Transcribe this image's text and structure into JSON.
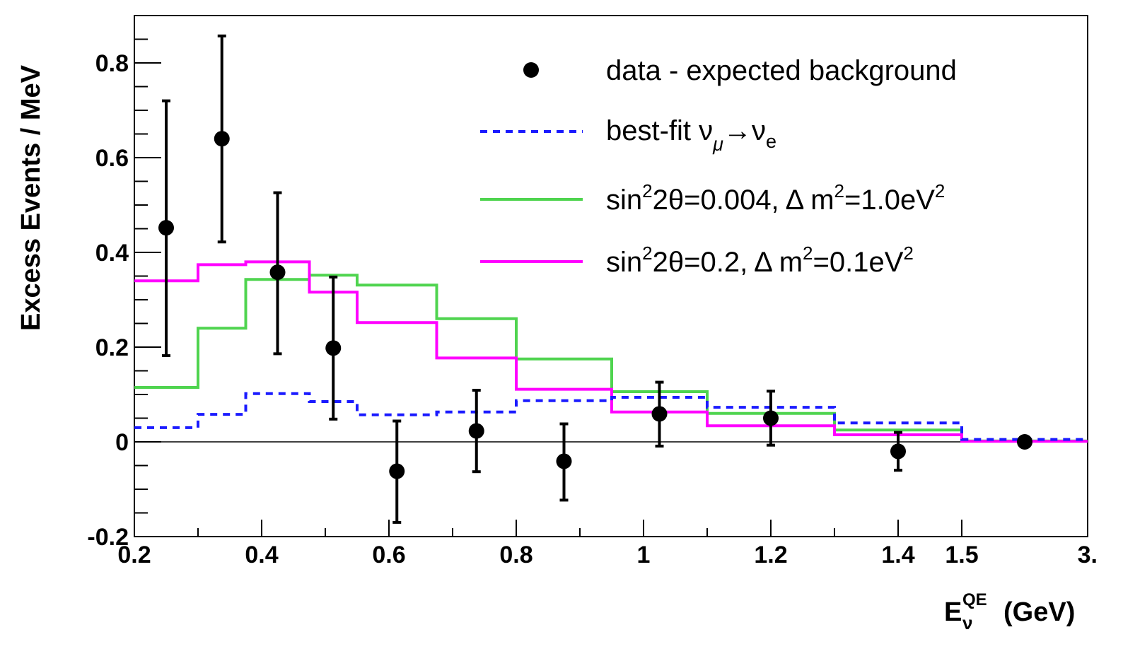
{
  "chart_data": {
    "type": "line",
    "xlabel": {
      "main": "E",
      "sup": "QE",
      "sub": "ν",
      "unit": "(GeV)"
    },
    "ylabel": "Excess Events / MeV",
    "xlim": [
      0.2,
      3.0
    ],
    "ylim": [
      -0.2,
      0.9
    ],
    "x_scale": "piecewise: linear 0.2–1.5 GeV, last bin 1.5–3.0 GeV compressed",
    "x_tick_values": [
      0.2,
      0.4,
      0.6,
      0.8,
      1.0,
      1.2,
      1.4,
      1.5,
      3.0
    ],
    "x_tick_labels": [
      "0.2",
      "0.4",
      "0.6",
      "0.8",
      "1",
      "1.2",
      "1.4",
      "1.5",
      "3."
    ],
    "y_tick_values": [
      -0.2,
      0,
      0.2,
      0.4,
      0.6,
      0.8
    ],
    "y_tick_labels": [
      "-0.2",
      "0",
      "0.2",
      "0.4",
      "0.6",
      "0.8"
    ],
    "bin_edges": [
      0.2,
      0.3,
      0.375,
      0.475,
      0.55,
      0.675,
      0.8,
      0.95,
      1.1,
      1.3,
      1.5,
      3.0
    ],
    "grid": false,
    "legend_position": "top-right",
    "colors": {
      "data": "#000000",
      "best_fit": "#1a1aff",
      "green": "#4fd44f",
      "magenta": "#ff00ff",
      "zero_line": "#000000"
    },
    "data_points": {
      "name": "data - expected background",
      "x": [
        0.25,
        0.3375,
        0.425,
        0.5125,
        0.6125,
        0.7375,
        0.875,
        1.025,
        1.2,
        1.4,
        2.25
      ],
      "y": [
        0.452,
        0.64,
        0.358,
        0.198,
        -0.062,
        0.023,
        -0.041,
        0.059,
        0.05,
        -0.02,
        0.0
      ],
      "yerr_low": [
        0.27,
        0.218,
        0.172,
        0.15,
        0.108,
        0.086,
        0.082,
        0.068,
        0.057,
        0.04,
        0.0
      ],
      "yerr_high": [
        0.268,
        0.217,
        0.168,
        0.15,
        0.106,
        0.086,
        0.079,
        0.067,
        0.057,
        0.04,
        0.0
      ]
    },
    "series": [
      {
        "name": "best-fit ν_μ→ν_e",
        "style": "dashed",
        "values": [
          0.03,
          0.058,
          0.102,
          0.085,
          0.057,
          0.063,
          0.087,
          0.094,
          0.073,
          0.04,
          0.005
        ]
      },
      {
        "name": "sin²2θ=0.004, Δ m²=1.0eV²",
        "style": "solid",
        "values": [
          0.115,
          0.24,
          0.343,
          0.352,
          0.331,
          0.26,
          0.175,
          0.106,
          0.06,
          0.025,
          0.002
        ]
      },
      {
        "name": "sin²2θ=0.2, Δ m²=0.1eV²",
        "style": "solid",
        "values": [
          0.34,
          0.374,
          0.38,
          0.316,
          0.252,
          0.177,
          0.111,
          0.063,
          0.034,
          0.015,
          0.001
        ]
      }
    ],
    "legend": [
      {
        "kind": "marker",
        "text": "data - expected background"
      },
      {
        "kind": "best-fit",
        "text_main": "best-fit ν",
        "sub1": "μ",
        "arrow": "→ν",
        "sub2": "e"
      },
      {
        "kind": "green",
        "text_a": "sin",
        "sup_a": "2",
        "text_b": "2θ=0.004, Δ m",
        "sup_b": "2",
        "text_c": "=1.0eV",
        "sup_c": "2"
      },
      {
        "kind": "magenta",
        "text_a": "sin",
        "sup_a": "2",
        "text_b": "2θ=0.2, Δ m",
        "sup_b": "2",
        "text_c": "=0.1eV",
        "sup_c": "2"
      }
    ]
  }
}
